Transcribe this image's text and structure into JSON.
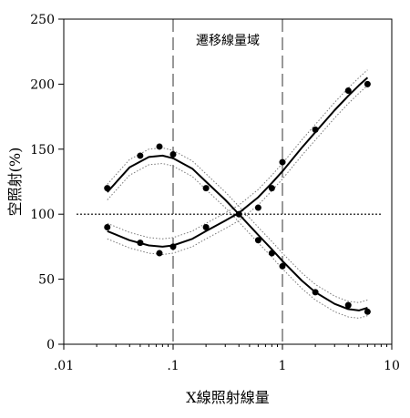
{
  "chart_data": {
    "type": "scatter",
    "title": "",
    "xlabel": "X線照射線量",
    "ylabel": "空照射(%)",
    "xscale": "log",
    "xlim": [
      0.01,
      10
    ],
    "ylim": [
      0,
      250
    ],
    "x_ticks": [
      0.01,
      0.1,
      1,
      10
    ],
    "x_tick_labels": [
      ".01",
      ".1",
      "1",
      "10"
    ],
    "y_ticks": [
      0,
      50,
      100,
      150,
      200,
      250
    ],
    "y_tick_labels": [
      "0",
      "50",
      "100",
      "150",
      "200",
      "250"
    ],
    "grid": false,
    "legend": "none",
    "reference_line_y": 100,
    "region_lines_x": [
      0.1,
      1
    ],
    "region_label": "遷移線量域",
    "series": [
      {
        "points_x": [
          0.025,
          0.05,
          0.075,
          0.1,
          0.2,
          0.4,
          0.6,
          0.8,
          1.0,
          2.0,
          4.0,
          6.0
        ],
        "points_y": [
          120,
          145,
          152,
          146,
          120,
          100,
          80,
          70,
          60,
          40,
          30,
          25
        ],
        "fit_x": [
          0.025,
          0.04,
          0.06,
          0.08,
          0.1,
          0.15,
          0.2,
          0.3,
          0.4,
          0.6,
          0.8,
          1.0,
          1.5,
          2.0,
          3.0,
          4.0,
          5.0,
          6.0
        ],
        "fit_y": [
          117,
          136,
          144,
          145,
          143,
          135,
          125,
          111,
          100,
          84,
          73,
          64,
          49,
          40,
          31,
          27,
          26,
          28
        ]
      },
      {
        "points_x": [
          0.025,
          0.05,
          0.075,
          0.1,
          0.2,
          0.4,
          0.6,
          0.8,
          1.0,
          2.0,
          4.0,
          6.0
        ],
        "points_y": [
          90,
          78,
          70,
          75,
          90,
          100,
          105,
          120,
          140,
          165,
          195,
          200
        ],
        "fit_x": [
          0.025,
          0.04,
          0.06,
          0.08,
          0.1,
          0.15,
          0.2,
          0.3,
          0.4,
          0.6,
          0.8,
          1.0,
          1.5,
          2.0,
          3.0,
          4.0,
          5.0,
          6.0
        ],
        "fit_y": [
          87,
          80,
          76,
          75,
          76,
          81,
          87,
          95,
          101,
          113,
          124,
          133,
          151,
          163,
          180,
          191,
          199,
          205
        ]
      }
    ],
    "colors": {
      "points": "#000000",
      "fit": "#000000",
      "confidence_band": "#777777",
      "reference_line": "#000000",
      "region_lines": "#555555"
    }
  }
}
